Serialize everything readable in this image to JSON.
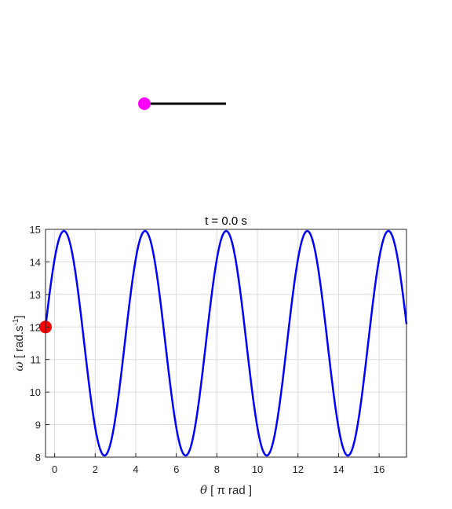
{
  "pendulum": {
    "rod_color": "#000000",
    "bob_color": "#ff00ff"
  },
  "chart_data": {
    "type": "line",
    "title_prefix": "t =  ",
    "time_value": "0.0",
    "time_unit": "  s",
    "xlabel": {
      "symbol": "θ",
      "text": "  [ π rad ]"
    },
    "ylabel": {
      "symbol": "ω",
      "text": "  [ rad.s",
      "superscript": "-1",
      "close": "]"
    },
    "xlim": [
      -0.45,
      17.35
    ],
    "ylim": [
      8,
      15
    ],
    "xticks": [
      0,
      2,
      4,
      6,
      8,
      10,
      12,
      14,
      16
    ],
    "yticks": [
      8,
      9,
      10,
      11,
      12,
      13,
      14,
      15
    ],
    "grid": true,
    "series": [
      {
        "color": "#0000ff",
        "function": "omega = 11.5 + 3.45 * sin(pi*theta/2 + 0.85)",
        "x_range": [
          -0.45,
          17.35
        ]
      }
    ],
    "marker": {
      "x": -0.45,
      "y": 12.0,
      "color": "#ff0000"
    }
  }
}
